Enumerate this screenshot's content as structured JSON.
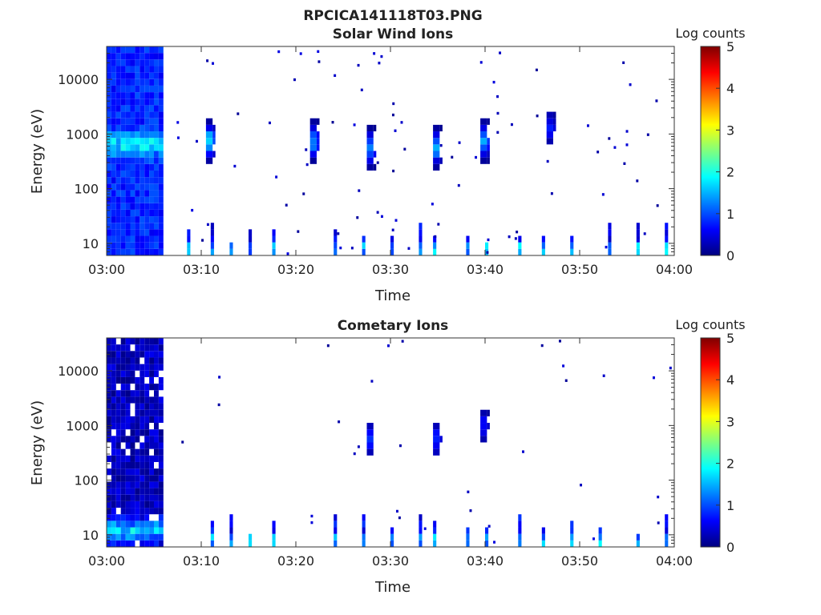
{
  "figure": {
    "title": "RPCICA141118T03.PNG",
    "colormap": [
      "#00007f",
      "#0000ff",
      "#007fff",
      "#00ffff",
      "#7fff7f",
      "#ffff00",
      "#ff7f00",
      "#ff0000",
      "#7f0000"
    ]
  },
  "chart_data": [
    {
      "type": "heatmap",
      "title": "Solar Wind Ions",
      "xlabel": "Time",
      "ylabel": "Energy (eV)",
      "x_ticks": [
        "03:00",
        "03:10",
        "03:20",
        "03:30",
        "03:40",
        "03:50",
        "04:00"
      ],
      "xlim_minutes": [
        0,
        60
      ],
      "y_scale": "log",
      "ylim": [
        6,
        40000
      ],
      "y_ticks": [
        10,
        100,
        1000,
        10000
      ],
      "y_tick_labels": [
        "10",
        "100",
        "1000",
        "10000"
      ],
      "colorbar": {
        "label": "Log counts",
        "range": [
          0,
          5
        ],
        "ticks": [
          "0",
          "1",
          "2",
          "3",
          "4",
          "5"
        ]
      },
      "features": {
        "dense_block": {
          "t": [
            0,
            6
          ],
          "e": [
            6,
            40000
          ],
          "mean_log_counts": 0.8,
          "peak_energy": 650,
          "peak_log_counts": 2.0
        },
        "low_energy_spikes_t": [
          8.5,
          11,
          13,
          15,
          17.5,
          24,
          27,
          30,
          33,
          34.5,
          38,
          40,
          43.5,
          46,
          49,
          53,
          56,
          59
        ],
        "sporadic_beams": [
          {
            "t": 10.5,
            "e": 650,
            "v": 1.9
          },
          {
            "t": 21.5,
            "e": 650,
            "v": 1.7
          },
          {
            "t": 27.5,
            "e": 600,
            "v": 1.6
          },
          {
            "t": 34.5,
            "e": 600,
            "v": 1.5
          },
          {
            "t": 39.5,
            "e": 800,
            "v": 1.5
          },
          {
            "t": 46.5,
            "e": 1300,
            "v": 0.8
          }
        ]
      }
    },
    {
      "type": "heatmap",
      "title": "Cometary Ions",
      "xlabel": "Time",
      "ylabel": "Energy (eV)",
      "x_ticks": [
        "03:00",
        "03:10",
        "03:20",
        "03:30",
        "03:40",
        "03:50",
        "04:00"
      ],
      "xlim_minutes": [
        0,
        60
      ],
      "y_scale": "log",
      "ylim": [
        6,
        40000
      ],
      "y_ticks": [
        10,
        100,
        1000,
        10000
      ],
      "y_tick_labels": [
        "10",
        "100",
        "1000",
        "10000"
      ],
      "colorbar": {
        "label": "Log counts",
        "range": [
          0,
          5
        ],
        "ticks": [
          "0",
          "1",
          "2",
          "3",
          "4",
          "5"
        ]
      },
      "features": {
        "dense_block": {
          "t": [
            0,
            6
          ],
          "e": [
            6,
            40000
          ],
          "mean_log_counts": 0.3,
          "peak_energy": 12,
          "peak_log_counts": 1.9
        },
        "low_energy_spikes_t": [
          11,
          13,
          15,
          17.5,
          24,
          27,
          30,
          33,
          34.5,
          38,
          40,
          43.5,
          46,
          49,
          52,
          56,
          59
        ],
        "sporadic_beams": [
          {
            "t": 27.5,
            "e": 550,
            "v": 0.9
          },
          {
            "t": 34.5,
            "e": 600,
            "v": 0.9
          },
          {
            "t": 39.5,
            "e": 900,
            "v": 0.8
          }
        ]
      }
    }
  ]
}
